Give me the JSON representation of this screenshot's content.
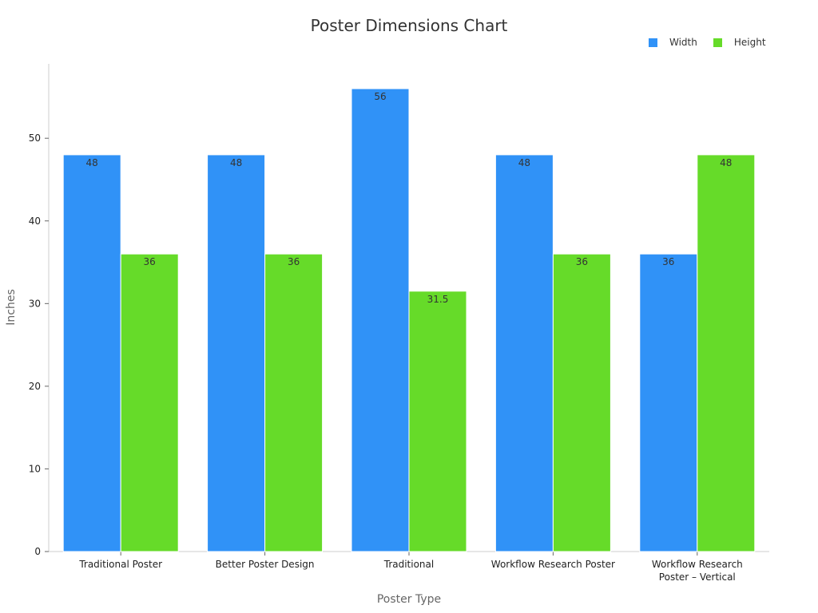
{
  "chart_data": {
    "type": "bar",
    "title": "Poster Dimensions Chart",
    "xlabel": "Poster Type",
    "ylabel": "Inches",
    "categories": [
      [
        "Traditional Poster"
      ],
      [
        "Better Poster Design"
      ],
      [
        "Traditional"
      ],
      [
        "Workflow Research Poster"
      ],
      [
        "Workflow Research",
        "Poster – Vertical"
      ]
    ],
    "series": [
      {
        "name": "Width",
        "color": "#3092f7",
        "values": [
          48,
          48,
          56,
          48,
          36
        ]
      },
      {
        "name": "Height",
        "color": "#66db29",
        "values": [
          36,
          36,
          31.5,
          36,
          48
        ]
      }
    ],
    "ylim": [
      0,
      59
    ],
    "yticks": [
      0,
      10,
      20,
      30,
      40,
      50
    ],
    "grid": false,
    "legend_position": "top-right",
    "data_labels": true
  }
}
